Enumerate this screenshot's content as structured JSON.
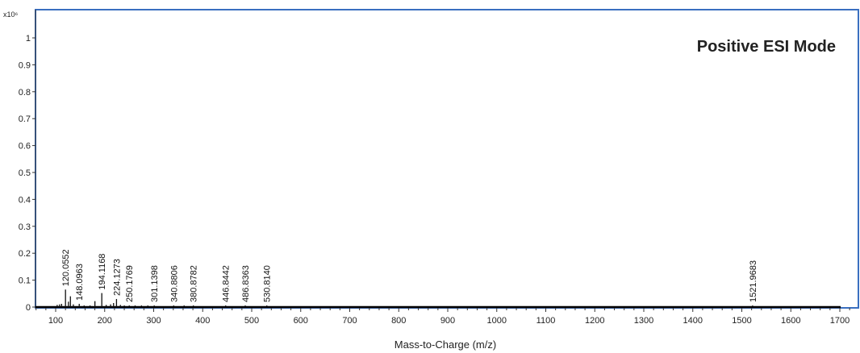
{
  "chart_data": {
    "type": "bar",
    "annotation": "Positive ESI Mode",
    "xlabel": "Mass-to-Charge (m/z)",
    "ylabel": "",
    "y_multiplier_label": "x10⁶",
    "xlim": [
      50,
      1725
    ],
    "ylim": [
      0,
      1.1
    ],
    "x_ticks": [
      100,
      200,
      300,
      400,
      500,
      600,
      700,
      800,
      900,
      1000,
      1100,
      1200,
      1300,
      1400,
      1500,
      1600,
      1700
    ],
    "y_ticks": [
      0,
      0.1,
      0.2,
      0.3,
      0.4,
      0.5,
      0.6,
      0.7,
      0.8,
      0.9,
      1
    ],
    "y_tick_labels": [
      "0",
      "0.1",
      "0.2",
      "0.3",
      "0.4",
      "0.5",
      "0.6",
      "0.7",
      "0.8",
      "0.9",
      "1"
    ],
    "grid": false,
    "peaks": [
      {
        "mz": 103.1,
        "intensity": 0.008
      },
      {
        "mz": 108.0,
        "intensity": 0.01
      },
      {
        "mz": 112.1,
        "intensity": 0.012
      },
      {
        "mz": 120.0552,
        "intensity": 0.065,
        "label": "120.0552"
      },
      {
        "mz": 126.1,
        "intensity": 0.02
      },
      {
        "mz": 130.1,
        "intensity": 0.04
      },
      {
        "mz": 136.1,
        "intensity": 0.01
      },
      {
        "mz": 148.0963,
        "intensity": 0.012,
        "label": "148.0963"
      },
      {
        "mz": 158.1,
        "intensity": 0.006
      },
      {
        "mz": 170.1,
        "intensity": 0.005
      },
      {
        "mz": 180.1,
        "intensity": 0.022
      },
      {
        "mz": 194.1168,
        "intensity": 0.052,
        "label": "194.1168"
      },
      {
        "mz": 203.1,
        "intensity": 0.008
      },
      {
        "mz": 212.1,
        "intensity": 0.01
      },
      {
        "mz": 218.1,
        "intensity": 0.015
      },
      {
        "mz": 224.1273,
        "intensity": 0.03,
        "label": "224.1273"
      },
      {
        "mz": 232.1,
        "intensity": 0.008
      },
      {
        "mz": 240.1,
        "intensity": 0.005
      },
      {
        "mz": 250.1769,
        "intensity": 0.006,
        "label": "250.1769"
      },
      {
        "mz": 262.1,
        "intensity": 0.004
      },
      {
        "mz": 275.1,
        "intensity": 0.004
      },
      {
        "mz": 288.1,
        "intensity": 0.004
      },
      {
        "mz": 301.1398,
        "intensity": 0.004,
        "label": "301.1398"
      },
      {
        "mz": 340.8806,
        "intensity": 0.004,
        "label": "340.8806"
      },
      {
        "mz": 362.1,
        "intensity": 0.005
      },
      {
        "mz": 380.8782,
        "intensity": 0.004,
        "label": "380.8782"
      },
      {
        "mz": 446.8442,
        "intensity": 0.003,
        "label": "446.8442"
      },
      {
        "mz": 486.8363,
        "intensity": 0.003,
        "label": "486.8363"
      },
      {
        "mz": 530.814,
        "intensity": 0.003,
        "label": "530.8140"
      },
      {
        "mz": 1521.9683,
        "intensity": 0.003,
        "label": "1521.9683"
      }
    ],
    "colors": {
      "frame": "#3a6fc0",
      "axis": "#333333",
      "peak": "#111111"
    }
  }
}
